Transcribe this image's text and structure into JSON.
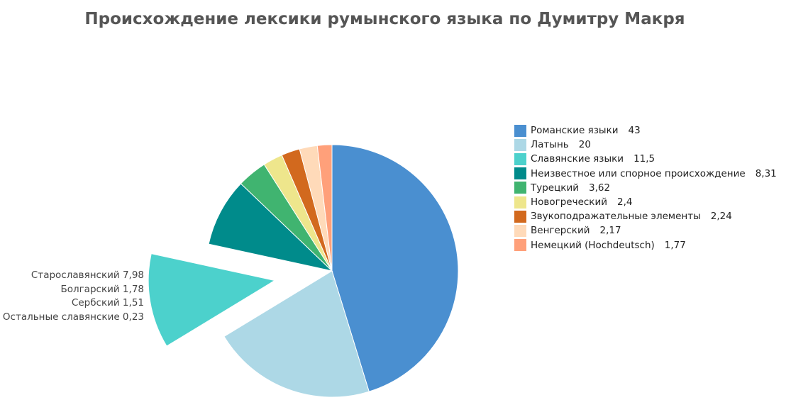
{
  "chart_data": {
    "type": "pie",
    "title": "Происхождение лексики румынского языка по Думитру Макря",
    "slices": [
      {
        "label": "Романские языки",
        "value": 43,
        "value_text": "43",
        "color": "#4a8fd0"
      },
      {
        "label": "Латынь",
        "value": 20,
        "value_text": "20",
        "color": "#add8e6"
      },
      {
        "label": "Славянские языки",
        "value": 11.5,
        "value_text": "11,5",
        "color": "#4cd1cc",
        "exploded": true
      },
      {
        "label": "Неизвестное или спорное происхождение",
        "value": 8.31,
        "value_text": "8,31",
        "color": "#008b8b"
      },
      {
        "label": "Турецкий",
        "value": 3.62,
        "value_text": "3,62",
        "color": "#40b470"
      },
      {
        "label": "Новогреческий",
        "value": 2.4,
        "value_text": "2,4",
        "color": "#eee68c"
      },
      {
        "label": "Звукоподражательные элементы",
        "value": 2.24,
        "value_text": "2,24",
        "color": "#d2691e"
      },
      {
        "label": "Венгерский",
        "value": 2.17,
        "value_text": "2,17",
        "color": "#ffdab9"
      },
      {
        "label": "Немецкий (Hochdeutsch)",
        "value": 1.77,
        "value_text": "1,77",
        "color": "#ffa07a"
      }
    ],
    "legend_position": "right",
    "annotation": {
      "target_slice": "Славянские языки",
      "lines": [
        "Старославянский 7,98",
        "Болгарский 1,78",
        "Сербский 1,51",
        "Остальные славянские 0,23"
      ]
    }
  }
}
